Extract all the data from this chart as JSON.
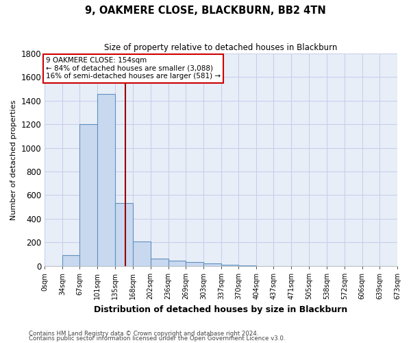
{
  "title": "9, OAKMERE CLOSE, BLACKBURN, BB2 4TN",
  "subtitle": "Size of property relative to detached houses in Blackburn",
  "xlabel": "Distribution of detached houses by size in Blackburn",
  "ylabel": "Number of detached properties",
  "footnote1": "Contains HM Land Registry data © Crown copyright and database right 2024.",
  "footnote2": "Contains public sector information licensed under the Open Government Licence v3.0.",
  "bin_edges": [
    0,
    34,
    67,
    101,
    135,
    168,
    202,
    236,
    269,
    303,
    337,
    370,
    404,
    437,
    471,
    505,
    538,
    572,
    606,
    639,
    673
  ],
  "bar_heights": [
    0,
    90,
    1200,
    1460,
    530,
    205,
    60,
    45,
    35,
    20,
    10,
    5,
    0,
    0,
    0,
    0,
    0,
    0,
    0,
    0
  ],
  "bar_color": "#c8d8ef",
  "bar_edge_color": "#6090c0",
  "property_line_x": 154,
  "property_line_color": "#990000",
  "ylim": [
    0,
    1800
  ],
  "annotation_title": "9 OAKMERE CLOSE: 154sqm",
  "annotation_line1": "← 84% of detached houses are smaller (3,088)",
  "annotation_line2": "16% of semi-detached houses are larger (581) →",
  "annotation_box_color": "#ffffff",
  "annotation_box_edge": "#cc0000",
  "tick_labels": [
    "0sqm",
    "34sqm",
    "67sqm",
    "101sqm",
    "135sqm",
    "168sqm",
    "202sqm",
    "236sqm",
    "269sqm",
    "303sqm",
    "337sqm",
    "370sqm",
    "404sqm",
    "437sqm",
    "471sqm",
    "505sqm",
    "538sqm",
    "572sqm",
    "606sqm",
    "639sqm",
    "673sqm"
  ],
  "bg_color": "#ffffff",
  "plot_bg_color": "#e8eef8",
  "grid_color": "#c8cfe8"
}
